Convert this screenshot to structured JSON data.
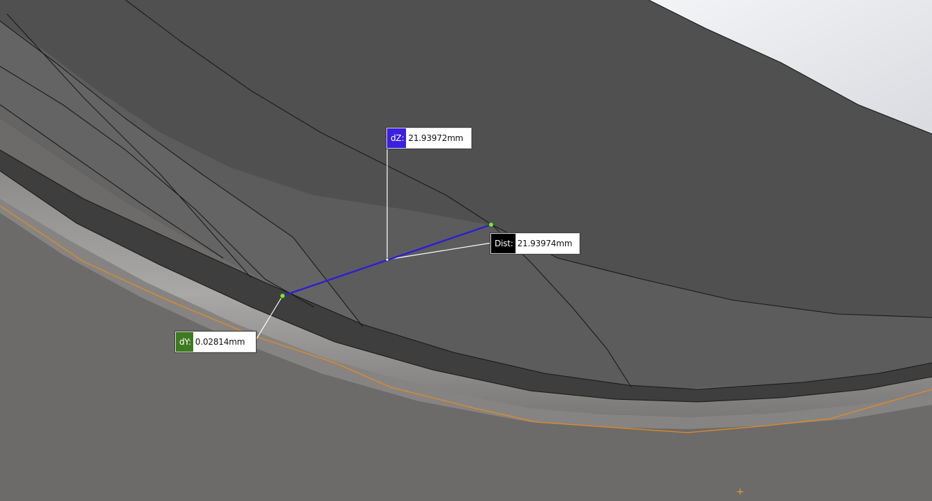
{
  "viewport": {
    "background": "#6b6a68",
    "sky_color": "#e6e8ec",
    "edge_color": "#e58a22",
    "measure_line_color": "#2a1fd6"
  },
  "measurements": {
    "dz": {
      "tag": "dZ:",
      "value": "21.93972mm",
      "color": "#3a20e0"
    },
    "dist": {
      "tag": "Dist:",
      "value": "21.93974mm",
      "color": "#000000"
    },
    "dy": {
      "tag": "dY:",
      "value": "0.02814mm",
      "color": "#3f7a22"
    }
  },
  "icons": {
    "cursor": "crosshair-plus-icon",
    "endpoint": "green-point-icon"
  }
}
